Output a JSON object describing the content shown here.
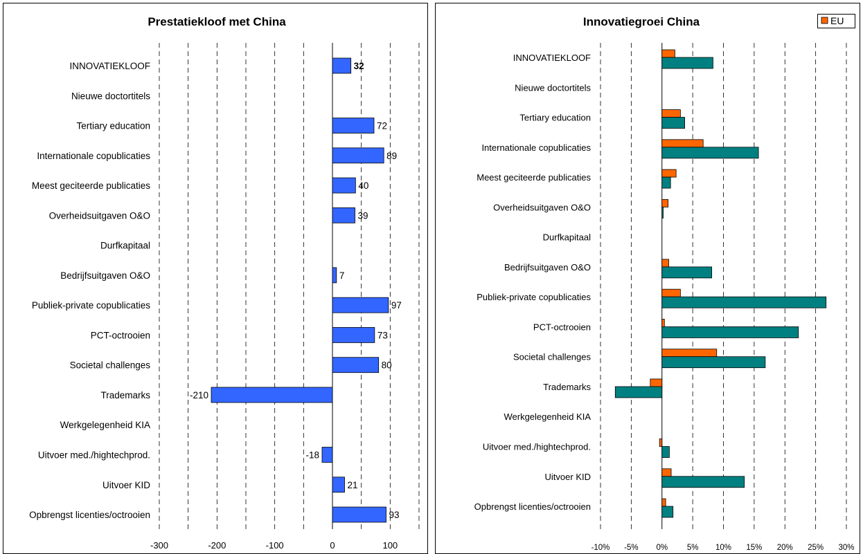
{
  "chart_data": [
    {
      "type": "bar",
      "orientation": "horizontal",
      "title": "Prestatiekloof met China",
      "categories": [
        "INNOVATIEKLOOF",
        "Nieuwe doctortitels",
        "Tertiary education",
        "Internationale copublicaties",
        "Meest geciteerde publicaties",
        "Overheidsuitgaven O&O",
        "Durfkapitaal",
        "Bedrijfsuitgaven O&O",
        "Publiek-private copublicaties",
        "PCT-octrooien",
        "Societal challenges",
        "Trademarks",
        "Werkgelegenheid KIA",
        "Uitvoer med./hightechprod.",
        "Uitvoer KID",
        "Opbrengst licenties/octrooien"
      ],
      "category_labels": [
        "INNOVATIEKLOOF",
        "Nieuwe doctortitels",
        "Tertiary education",
        "Internationale copublicaties",
        "Meest geciteerde publicaties",
        "Overheidsuitgaven O&O",
        "Durfkapitaal",
        "Bedrijfsuitgaven O&O",
        "Publiek-private copublicaties",
        "PCT-octrooien",
        "Societal challenges",
        "Trademarks",
        "Werkgelegenheid KIA",
        "Uitvoer med./hightechprod.",
        "Uitvoer KID",
        "Opbrengst licenties/octrooien"
      ],
      "series": [
        {
          "values": [
            32,
            null,
            72,
            89,
            40,
            39,
            null,
            7,
            97,
            73,
            80,
            -210,
            null,
            -18,
            21,
            93
          ],
          "color": "#3366ff"
        }
      ],
      "data_labels": [
        "32",
        "",
        "72",
        "89",
        "40",
        "39",
        "",
        "7",
        "97",
        "73",
        "80",
        "-210",
        "",
        "-18",
        "21",
        "93"
      ],
      "bold_label_index": 0,
      "xlim": [
        -300,
        150
      ],
      "ticks": [
        -300,
        -200,
        -100,
        0,
        100
      ],
      "tick_labels": [
        "-300",
        "-200",
        "-100",
        "0",
        "100"
      ],
      "grid_step": 50,
      "grid": "vertical dashed"
    },
    {
      "type": "bar",
      "orientation": "horizontal",
      "title": "Innovatiegroei China",
      "categories": [
        "INNOVATIEKLOOF",
        "Nieuwe doctortitels",
        "Tertiary education",
        "Internationale copublicaties",
        "Meest geciteerde publicaties",
        "Overheidsuitgaven O&O",
        "Durfkapitaal",
        "Bedrijfsuitgaven O&O",
        "Publiek-private copublicaties",
        "PCT-octrooien",
        "Societal challenges",
        "Trademarks",
        "Werkgelegenheid KIA",
        "Uitvoer med./hightechprod.",
        "Uitvoer KID",
        "Opbrengst licenties/octrooien"
      ],
      "category_labels": [
        "INNOVATIEKLOOF",
        "Nieuwe doctortitels",
        "Tertiary education",
        "Internationale copublicaties",
        "Meest geciteerde publicaties",
        "Overheidsuitgaven O&O",
        "Durfkapitaal",
        "Bedrijfsuitgaven O&O",
        "Publiek-private copublicaties",
        "PCT-octrooien",
        "Societal challenges",
        "Trademarks",
        "Werkgelegenheid KIA",
        "Uitvoer med./hightechprod.",
        "Uitvoer KID",
        "Opbrengst licenties/octrooien"
      ],
      "series": [
        {
          "name": "EU",
          "color": "#ff6600",
          "values": [
            2.1,
            null,
            3.0,
            6.7,
            2.3,
            1.0,
            null,
            1.1,
            3.0,
            0.4,
            8.9,
            -1.9,
            null,
            -0.4,
            1.5,
            0.6
          ]
        },
        {
          "color": "#008080",
          "values": [
            8.3,
            null,
            3.7,
            15.7,
            1.4,
            0.2,
            null,
            8.1,
            26.7,
            22.2,
            16.8,
            -7.6,
            null,
            1.2,
            13.4,
            1.8
          ]
        }
      ],
      "xlim": [
        -10,
        30
      ],
      "ticks": [
        -10,
        -5,
        0,
        5,
        10,
        15,
        20,
        25,
        30
      ],
      "tick_labels": [
        "-10%",
        "-5%",
        "0%",
        "5%",
        "10%",
        "15%",
        "20%",
        "25%",
        "30%"
      ],
      "grid": "vertical dashed",
      "legend": {
        "position": "top-right",
        "entries": [
          "EU"
        ]
      }
    }
  ]
}
